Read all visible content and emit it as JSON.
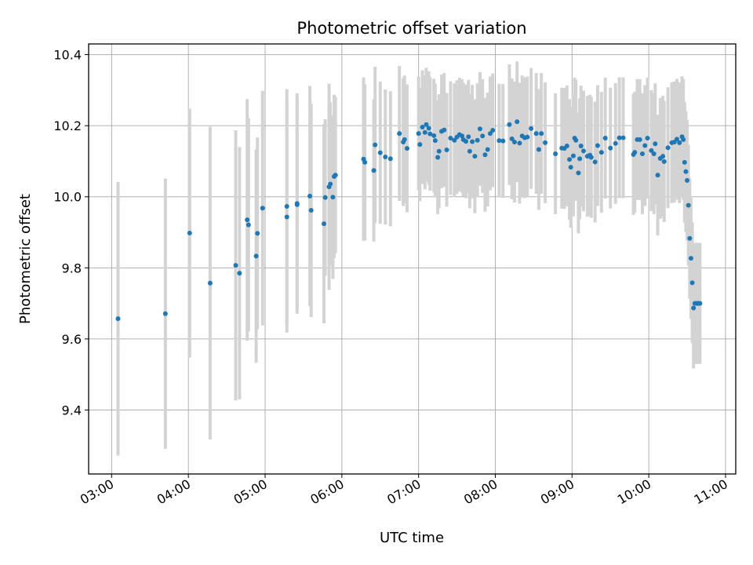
{
  "chart_data": {
    "type": "scatter",
    "title": "Photometric offset variation",
    "xlabel": "UTC time",
    "ylabel": "Photometric offset",
    "x_ticks": [
      "03:00",
      "04:00",
      "05:00",
      "06:00",
      "07:00",
      "08:00",
      "09:00",
      "10:00",
      "11:00"
    ],
    "y_ticks": [
      "9.4",
      "9.6",
      "9.8",
      "10.0",
      "10.2",
      "10.4"
    ],
    "xlim": [
      "02:42",
      "11:08"
    ],
    "ylim": [
      9.22,
      10.43
    ],
    "grid": true,
    "colors": {
      "point": "#1f77b4",
      "errorbar": "#d3d3d3",
      "grid": "#b0b0b0"
    },
    "series": [
      {
        "x": [
          "03:05",
          "03:42",
          "04:01",
          "04:17",
          "04:37",
          "04:40",
          "04:46",
          "04:47",
          "04:53",
          "04:54",
          "04:58",
          "05:17",
          "05:17",
          "05:25",
          "05:25",
          "05:35",
          "05:36",
          "05:46",
          "05:47",
          "05:50",
          "05:51",
          "05:53",
          "05:54",
          "05:55",
          "06:17",
          "06:18",
          "06:25",
          "06:26",
          "06:30",
          "06:34",
          "06:38",
          "06:45",
          "06:48",
          "06:49",
          "06:51",
          "07:00",
          "07:01",
          "07:03",
          "07:05",
          "07:06",
          "07:08",
          "07:09",
          "07:12",
          "07:13",
          "07:15",
          "07:16",
          "07:18",
          "07:20",
          "07:22",
          "07:25",
          "07:28",
          "07:30",
          "07:32",
          "07:34",
          "07:35",
          "07:37",
          "07:39",
          "07:40",
          "07:42",
          "07:44",
          "07:46",
          "07:48",
          "07:50",
          "07:52",
          "07:54",
          "07:56",
          "07:58",
          "08:03",
          "08:06",
          "08:11",
          "08:13",
          "08:15",
          "08:17",
          "08:19",
          "08:21",
          "08:23",
          "08:25",
          "08:28",
          "08:32",
          "08:34",
          "08:36",
          "08:39",
          "08:47",
          "08:52",
          "08:54",
          "08:56",
          "08:58",
          "08:59",
          "09:01",
          "09:02",
          "09:03",
          "09:05",
          "09:06",
          "09:07",
          "09:09",
          "09:12",
          "09:14",
          "09:15",
          "09:18",
          "09:20",
          "09:23",
          "09:26",
          "09:30",
          "09:34",
          "09:37",
          "09:40",
          "09:48",
          "09:49",
          "09:51",
          "09:53",
          "09:55",
          "09:57",
          "09:59",
          "10:02",
          "10:04",
          "10:05",
          "10:07",
          "10:09",
          "10:11",
          "10:12",
          "10:15",
          "10:18",
          "10:20",
          "10:22",
          "10:24",
          "10:26",
          "10:27",
          "10:28",
          "10:29",
          "10:30",
          "10:31",
          "10:32",
          "10:33",
          "10:34",
          "10:35",
          "10:36",
          "10:37",
          "10:38",
          "10:39",
          "10:40"
        ],
        "y": [
          9.657,
          9.671,
          9.898,
          9.757,
          9.807,
          9.785,
          9.935,
          9.921,
          9.833,
          9.897,
          9.968,
          9.973,
          9.943,
          9.978,
          9.981,
          10.002,
          9.962,
          9.924,
          9.998,
          10.028,
          10.036,
          9.999,
          10.057,
          10.061,
          10.106,
          10.097,
          10.074,
          10.146,
          10.124,
          10.112,
          10.107,
          10.178,
          10.154,
          10.161,
          10.136,
          10.178,
          10.147,
          10.196,
          10.181,
          10.203,
          10.193,
          10.177,
          10.172,
          10.158,
          10.111,
          10.128,
          10.184,
          10.188,
          10.132,
          10.165,
          10.159,
          10.168,
          10.175,
          10.171,
          10.161,
          10.156,
          10.169,
          10.128,
          10.155,
          10.114,
          10.159,
          10.191,
          10.171,
          10.118,
          10.133,
          10.178,
          10.187,
          10.158,
          10.157,
          10.203,
          10.163,
          10.154,
          10.211,
          10.151,
          10.171,
          10.166,
          10.168,
          10.192,
          10.178,
          10.133,
          10.178,
          10.152,
          10.121,
          10.137,
          10.136,
          10.143,
          10.105,
          10.083,
          10.115,
          10.165,
          10.159,
          10.067,
          10.107,
          10.143,
          10.129,
          10.114,
          10.117,
          10.111,
          10.098,
          10.144,
          10.125,
          10.165,
          10.137,
          10.15,
          10.166,
          10.166,
          10.119,
          10.125,
          10.161,
          10.161,
          10.121,
          10.144,
          10.165,
          10.13,
          10.121,
          10.149,
          10.061,
          10.108,
          10.114,
          10.099,
          10.138,
          10.152,
          10.154,
          10.162,
          10.152,
          10.169,
          10.161,
          10.097,
          10.071,
          10.046,
          9.976,
          9.883,
          9.827,
          9.758,
          9.687,
          9.7,
          9.7,
          9.7,
          9.7,
          9.7
        ],
        "err": [
          0.385,
          0.38,
          0.35,
          0.44,
          0.38,
          0.355,
          0.34,
          0.3,
          0.3,
          0.27,
          0.33,
          0.33,
          0.325,
          0.3,
          0.31,
          0.31,
          0.3,
          0.28,
          0.22,
          0.29,
          0.23,
          0.23,
          0.23,
          0.22,
          0.23,
          0.22,
          0.2,
          0.22,
          0.2,
          0.19,
          0.19,
          0.19,
          0.18,
          0.18,
          0.18,
          0.16,
          0.16,
          0.16,
          0.16,
          0.16,
          0.16,
          0.16,
          0.16,
          0.16,
          0.16,
          0.16,
          0.16,
          0.16,
          0.16,
          0.16,
          0.16,
          0.16,
          0.16,
          0.16,
          0.16,
          0.16,
          0.16,
          0.16,
          0.16,
          0.16,
          0.16,
          0.16,
          0.16,
          0.16,
          0.16,
          0.16,
          0.16,
          0.16,
          0.16,
          0.17,
          0.17,
          0.17,
          0.17,
          0.17,
          0.17,
          0.17,
          0.17,
          0.17,
          0.17,
          0.17,
          0.17,
          0.17,
          0.17,
          0.17,
          0.17,
          0.17,
          0.17,
          0.17,
          0.17,
          0.17,
          0.17,
          0.17,
          0.17,
          0.17,
          0.17,
          0.17,
          0.17,
          0.17,
          0.17,
          0.17,
          0.17,
          0.17,
          0.17,
          0.17,
          0.17,
          0.17,
          0.17,
          0.17,
          0.17,
          0.17,
          0.17,
          0.17,
          0.17,
          0.17,
          0.17,
          0.17,
          0.17,
          0.17,
          0.17,
          0.17,
          0.17,
          0.17,
          0.17,
          0.17,
          0.17,
          0.17,
          0.17,
          0.17,
          0.17,
          0.17,
          0.17,
          0.17,
          0.17,
          0.17,
          0.17,
          0.17,
          0.17,
          0.17,
          0.17,
          0.17
        ]
      }
    ]
  }
}
